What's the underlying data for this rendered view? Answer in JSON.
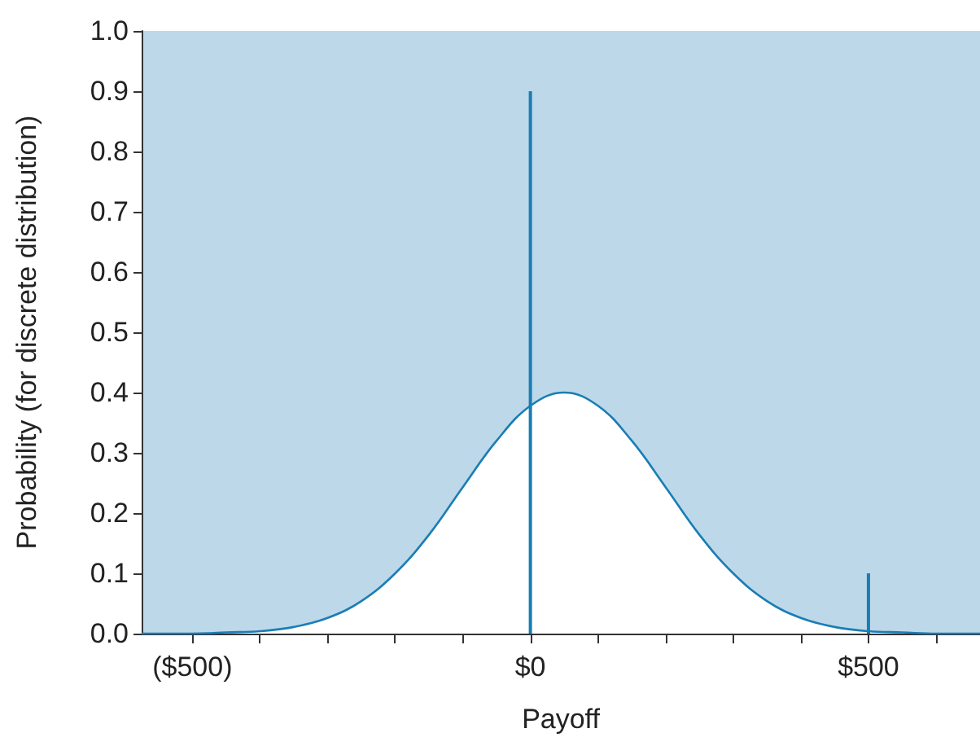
{
  "chart_data": {
    "type": "area",
    "xlabel": "Payoff",
    "ylabel": "Probability (for discrete distribution)",
    "xlim": [
      -575,
      665
    ],
    "ylim": [
      0,
      1
    ],
    "xticks": [
      {
        "value": -500,
        "label": "($500)"
      },
      {
        "value": -400,
        "label": null
      },
      {
        "value": -300,
        "label": null
      },
      {
        "value": -200,
        "label": null
      },
      {
        "value": -100,
        "label": null
      },
      {
        "value": 0,
        "label": "$0"
      },
      {
        "value": 100,
        "label": null
      },
      {
        "value": 200,
        "label": null
      },
      {
        "value": 300,
        "label": null
      },
      {
        "value": 400,
        "label": null
      },
      {
        "value": 500,
        "label": "$500"
      },
      {
        "value": 600,
        "label": null
      }
    ],
    "yticks": [
      {
        "value": 0,
        "label": "0.0"
      },
      {
        "value": 0.1,
        "label": "0.1"
      },
      {
        "value": 0.2,
        "label": "0.2"
      },
      {
        "value": 0.3,
        "label": "0.3"
      },
      {
        "value": 0.4,
        "label": "0.4"
      },
      {
        "value": 0.5,
        "label": "0.5"
      },
      {
        "value": 0.6,
        "label": "0.6"
      },
      {
        "value": 0.7,
        "label": "0.7"
      },
      {
        "value": 0.8,
        "label": "0.8"
      },
      {
        "value": 0.9,
        "label": "0.9"
      },
      {
        "value": 1,
        "label": "1.0"
      }
    ],
    "marker": "none",
    "series": [
      {
        "color": "#1a7db5",
        "x": [
          -575,
          -500,
          -450,
          -400,
          -350,
          -300,
          -250,
          -200,
          -150,
          -100,
          -50,
          0,
          50,
          100,
          150,
          200,
          250,
          300,
          350,
          400,
          450,
          500,
          550,
          600,
          665
        ],
        "values": [
          0,
          0,
          0.002,
          0.004,
          0.011,
          0.026,
          0.054,
          0.1,
          0.164,
          0.243,
          0.32,
          0.378,
          0.4,
          0.378,
          0.32,
          0.243,
          0.164,
          0.1,
          0.054,
          0.026,
          0.011,
          0.004,
          0.002,
          0,
          0
        ]
      },
      {
        "type": "bar",
        "color": "#1a7db5",
        "x": [
          0,
          500
        ],
        "values": [
          0.9,
          0.1
        ]
      }
    ]
  }
}
